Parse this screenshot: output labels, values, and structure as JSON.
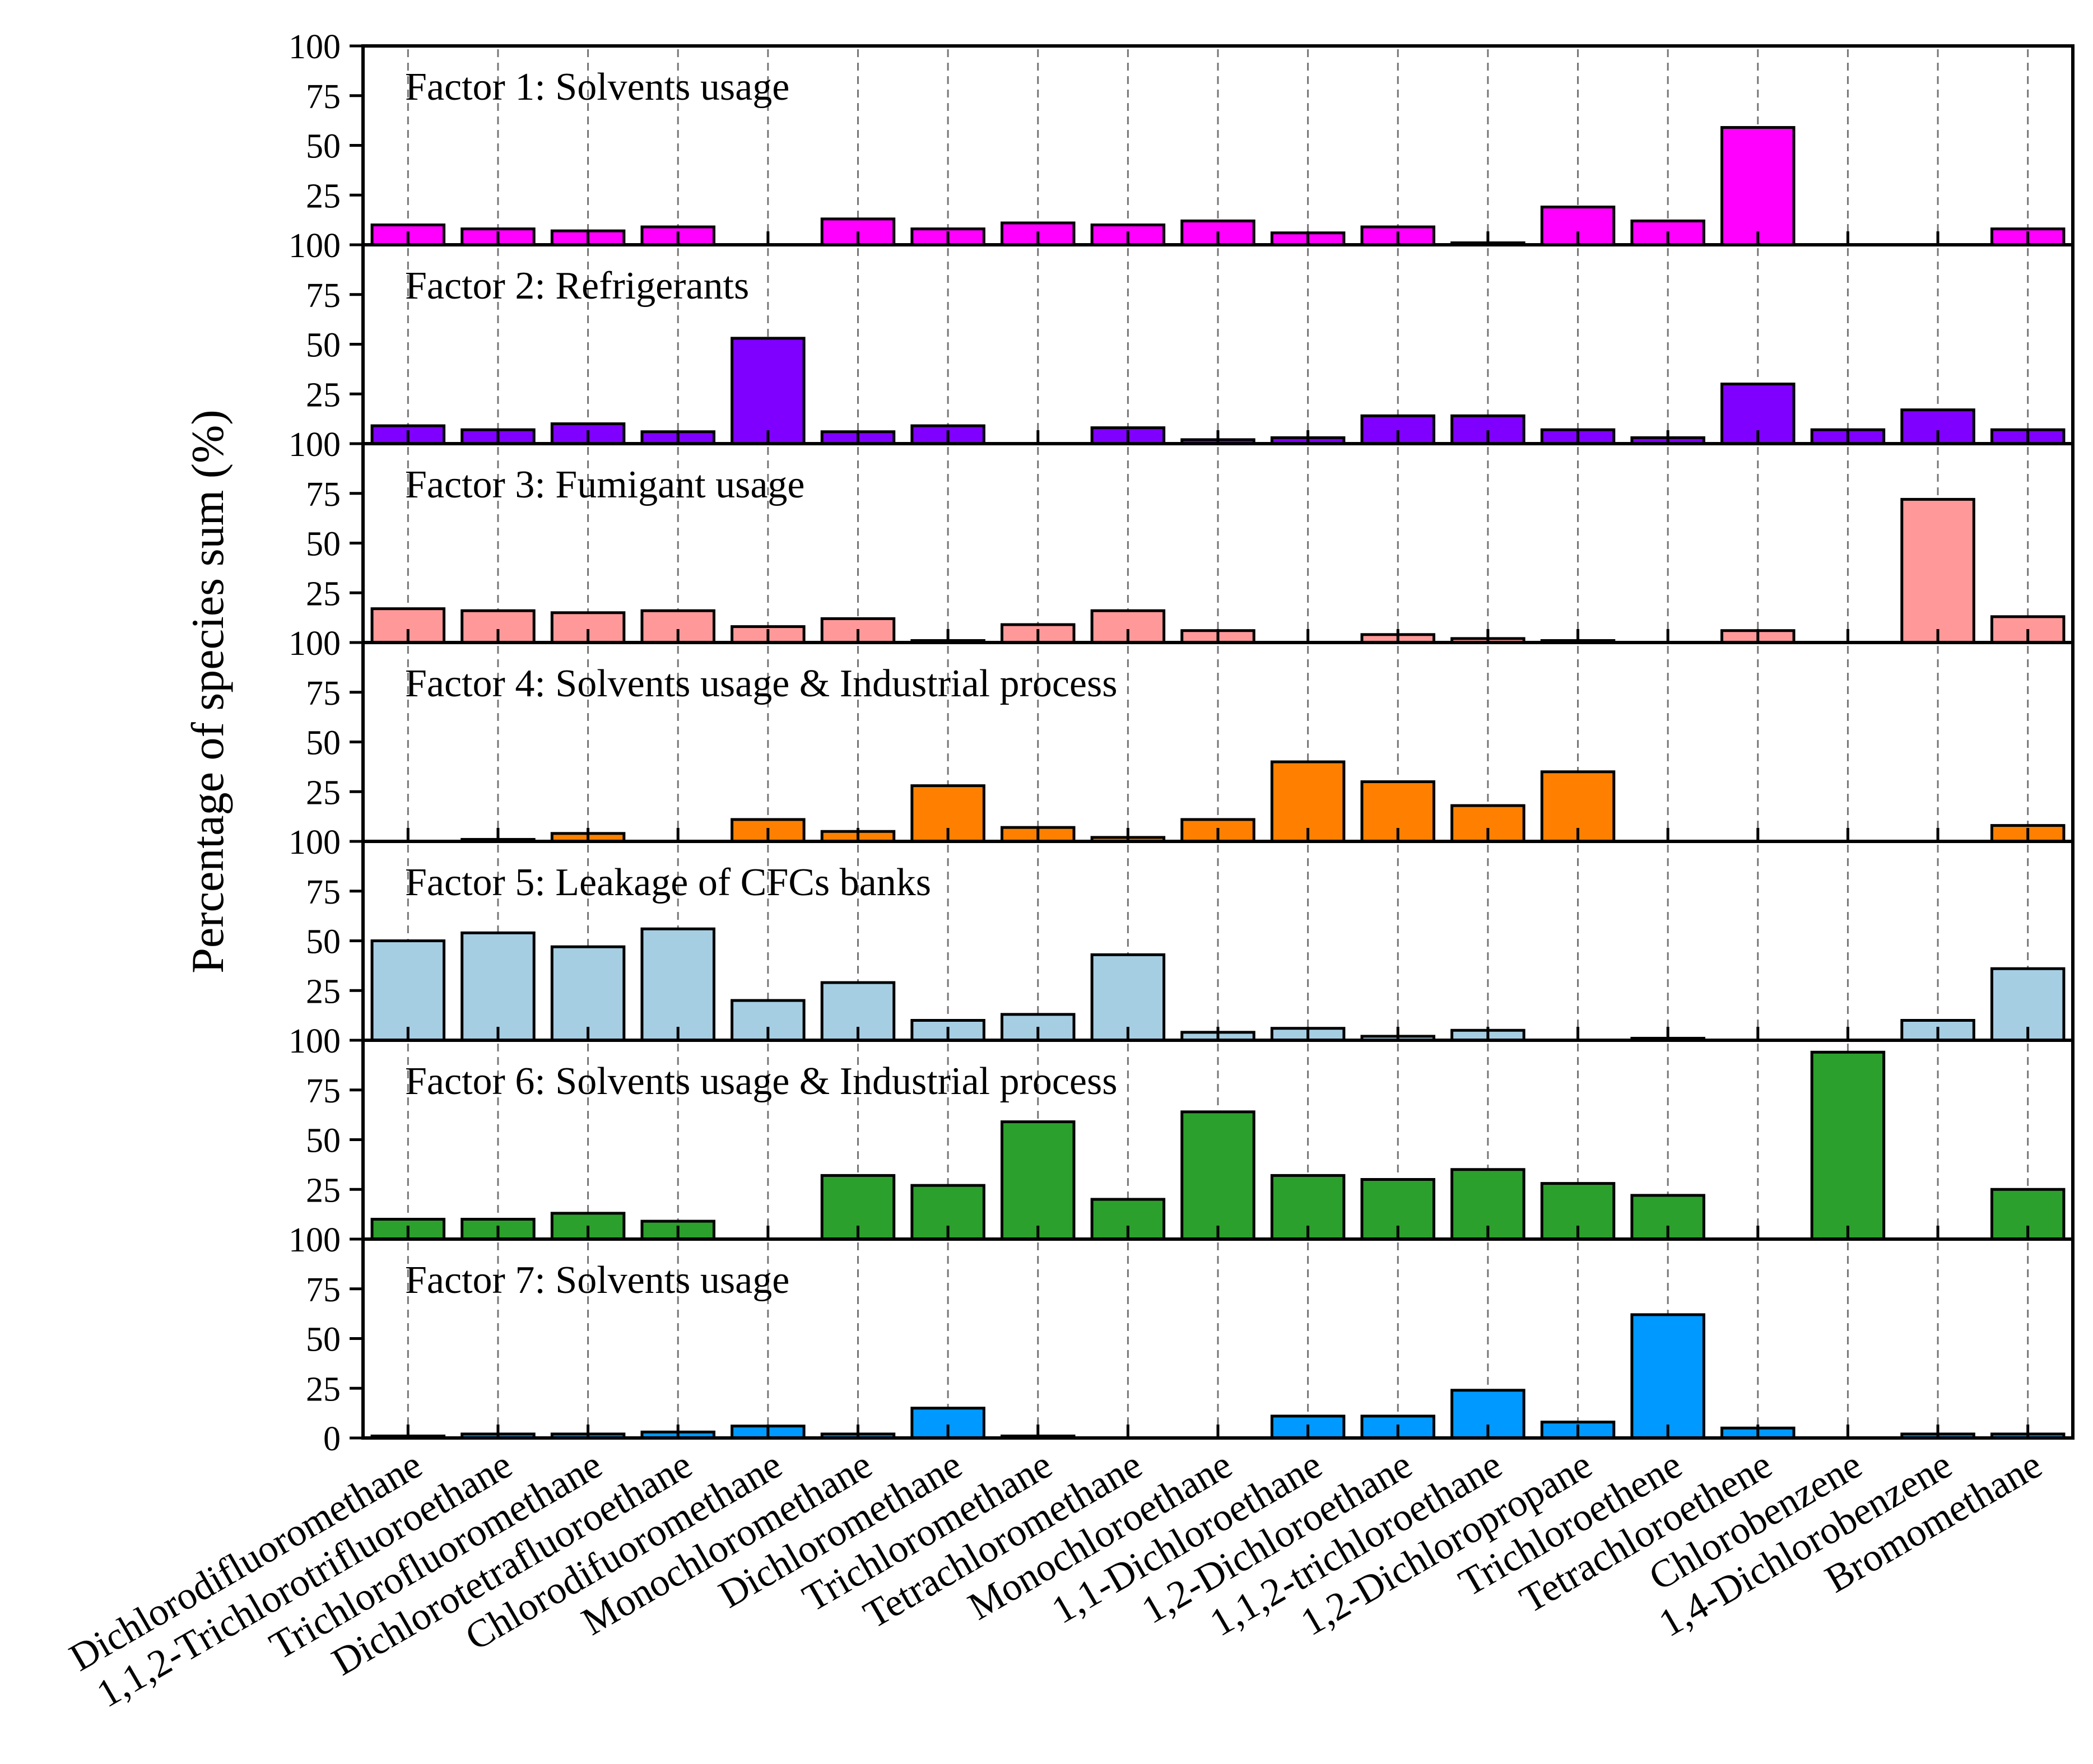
{
  "chart_data": {
    "type": "bar",
    "ylabel": "Percentage of species sum (%)",
    "ylim": [
      0,
      100
    ],
    "yticks": [
      0,
      25,
      50,
      75,
      100
    ],
    "ytick_labels": [
      "100",
      "75",
      "50",
      "25",
      "100",
      "75",
      "50",
      "25",
      "100",
      "75",
      "50",
      "25",
      "100",
      "75",
      "50",
      "25",
      "100",
      "75",
      "50",
      "25",
      "100",
      "75",
      "50",
      "25",
      "100",
      "75",
      "50",
      "25",
      "0"
    ],
    "categories": [
      "Dichlorodifluoromethane",
      "1,1,2-Trichlorotrifluoroethane",
      "Trichlorofluoromethane",
      "Dichlorotetrafluoroethane",
      "Chlorodifuoromethane",
      "Monochloromethane",
      "Dichloromethane",
      "Trichloromethane",
      "Tetrachloromethane",
      "Monochloroethane",
      "1,1-Dichloroethane",
      "1,2-Dichloroethane",
      "1,1,2-trichloroethane",
      "1,2-Dichloropropane",
      "Trichloroethene",
      "Tetrachloroethene",
      "Chlorobenzene",
      "1,4-Dichlorobenzene",
      "Bromomethane"
    ],
    "series": [
      {
        "name": "Factor 1: Solvents usage",
        "color": "#ff00ff",
        "values": [
          10,
          8,
          7,
          9,
          0,
          13,
          8,
          11,
          10,
          12,
          6,
          9,
          1,
          19,
          12,
          59,
          0,
          0,
          8
        ]
      },
      {
        "name": "Factor 2: Refrigerants",
        "color": "#7f00ff",
        "values": [
          9,
          7,
          10,
          6,
          53,
          6,
          9,
          0,
          8,
          2,
          3,
          14,
          14,
          7,
          3,
          30,
          7,
          17,
          7
        ]
      },
      {
        "name": "Factor 3: Fumigant usage",
        "color": "#ff9999",
        "values": [
          17,
          16,
          15,
          16,
          8,
          12,
          1,
          9,
          16,
          6,
          0,
          4,
          2,
          1,
          0,
          6,
          0,
          72,
          13
        ]
      },
      {
        "name": "Factor 4: Solvents usage & Industrial process",
        "color": "#ff8000",
        "values": [
          0,
          1,
          4,
          0,
          11,
          5,
          28,
          7,
          2,
          11,
          40,
          30,
          18,
          35,
          0,
          0,
          0,
          0,
          8
        ]
      },
      {
        "name": "Factor 5: Leakage of CFCs banks",
        "color": "#a6cee3",
        "values": [
          50,
          54,
          47,
          56,
          20,
          29,
          10,
          13,
          43,
          4,
          6,
          2,
          5,
          0,
          1,
          0,
          0,
          10,
          36
        ]
      },
      {
        "name": "Factor 6: Solvents usage & Industrial process",
        "color": "#2ca02c",
        "values": [
          10,
          10,
          13,
          9,
          0,
          32,
          27,
          59,
          20,
          64,
          32,
          30,
          35,
          28,
          22,
          0,
          94,
          0,
          25
        ]
      },
      {
        "name": "Factor 7: Solvents usage",
        "color": "#0099ff",
        "values": [
          1,
          2,
          2,
          3,
          6,
          2,
          15,
          1,
          0,
          0,
          11,
          11,
          24,
          8,
          62,
          5,
          0,
          2,
          2
        ]
      }
    ]
  }
}
